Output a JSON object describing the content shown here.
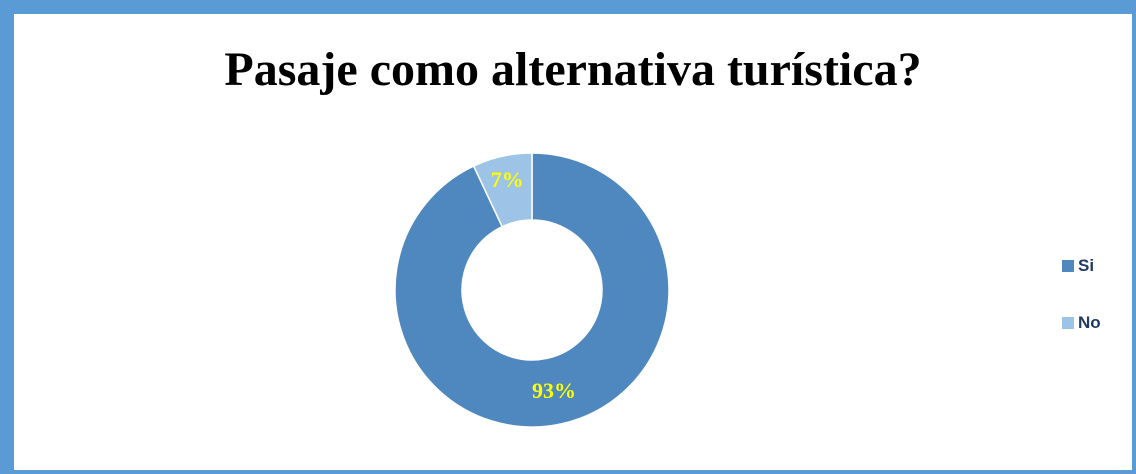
{
  "chart_data": {
    "type": "pie",
    "variant": "donut",
    "title": "Pasaje como alternativa turística?",
    "categories": [
      "Si",
      "No"
    ],
    "values": [
      93,
      7
    ],
    "labels": [
      "93%",
      "7%"
    ],
    "colors": [
      "#4f88bf",
      "#9dc3e6"
    ],
    "label_color": "#ffff00",
    "legend_placement": "right"
  },
  "frame_color": "#5b9bd5"
}
